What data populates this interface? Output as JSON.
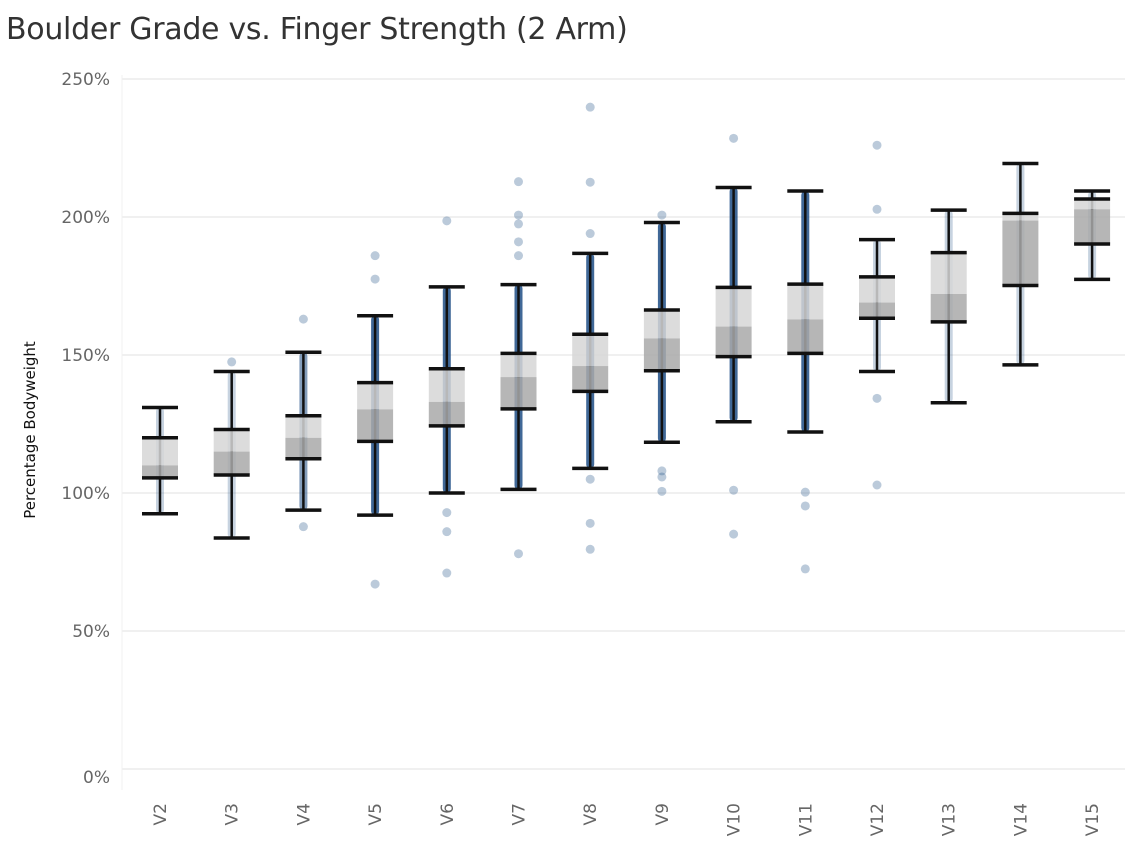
{
  "chart_data": {
    "type": "boxplot",
    "title": "Boulder Grade vs. Finger Strength (2 Arm)",
    "xlabel": "",
    "ylabel": "Percentage Bodyweight",
    "ylim": [
      0,
      250
    ],
    "yticks": [
      "0%",
      "50%",
      "100%",
      "150%",
      "200%",
      "250%"
    ],
    "ytick_values": [
      0,
      50,
      100,
      150,
      200,
      250
    ],
    "grid": true,
    "colors": {
      "upper_box": "#d6d6d6",
      "lower_box": "#a9a9a9",
      "whisker": "#111111",
      "points": "#1f4e85"
    },
    "categories": [
      "V2",
      "V3",
      "V4",
      "V5",
      "V6",
      "V7",
      "V8",
      "V9",
      "V10",
      "V11",
      "V12",
      "V13",
      "V14",
      "V15"
    ],
    "boxes": [
      {
        "low": 92.5,
        "q1": 105.5,
        "median": 110,
        "q3": 120,
        "high": 131,
        "point_density": "low"
      },
      {
        "low": 83.7,
        "q1": 106.5,
        "median": 115,
        "q3": 123,
        "high": 144,
        "point_density": "low"
      },
      {
        "low": 93.8,
        "q1": 112.4,
        "median": 120,
        "q3": 128,
        "high": 151,
        "point_density": "medium"
      },
      {
        "low": 92,
        "q1": 118.7,
        "median": 130.3,
        "q3": 140,
        "high": 164.2,
        "point_density": "high"
      },
      {
        "low": 100,
        "q1": 124.3,
        "median": 133,
        "q3": 145,
        "high": 174.7,
        "point_density": "high"
      },
      {
        "low": 101.3,
        "q1": 130.5,
        "median": 142,
        "q3": 150.6,
        "high": 175.5,
        "point_density": "high"
      },
      {
        "low": 108.9,
        "q1": 136.8,
        "median": 146,
        "q3": 157.5,
        "high": 186.8,
        "point_density": "high"
      },
      {
        "low": 118.4,
        "q1": 144.3,
        "median": 156,
        "q3": 166.3,
        "high": 198,
        "point_density": "high"
      },
      {
        "low": 125.8,
        "q1": 149.4,
        "median": 160.3,
        "q3": 174.5,
        "high": 210.7,
        "point_density": "high"
      },
      {
        "low": 122.1,
        "q1": 150.6,
        "median": 162.9,
        "q3": 175.7,
        "high": 209.4,
        "point_density": "high"
      },
      {
        "low": 144,
        "q1": 163.3,
        "median": 169,
        "q3": 178.3,
        "high": 191.8,
        "point_density": "low"
      },
      {
        "low": 132.7,
        "q1": 162,
        "median": 172.1,
        "q3": 187.1,
        "high": 202.5,
        "point_density": "low"
      },
      {
        "low": 146.4,
        "q1": 175.2,
        "median": 198.7,
        "q3": 201.3,
        "high": 219.4,
        "point_density": "low"
      },
      {
        "low": 177.4,
        "q1": 190.2,
        "median": 202.8,
        "q3": 206.5,
        "high": 209.4,
        "point_density": "low"
      }
    ],
    "outliers": [
      [],
      [
        147.5
      ],
      [
        163,
        87.8
      ],
      [
        186,
        177.5,
        67
      ],
      [
        198.6,
        92.9,
        86,
        71
      ],
      [
        212.8,
        200.7,
        197.5,
        191,
        186,
        78
      ],
      [
        239.8,
        212.6,
        194,
        105,
        89,
        79.6
      ],
      [
        200.7,
        108,
        105.8,
        100.6
      ],
      [
        228.5,
        101,
        85.1
      ],
      [
        100.3,
        95.3,
        72.5
      ],
      [
        226,
        202.8,
        134.3,
        102.9
      ],
      [],
      [],
      []
    ]
  }
}
